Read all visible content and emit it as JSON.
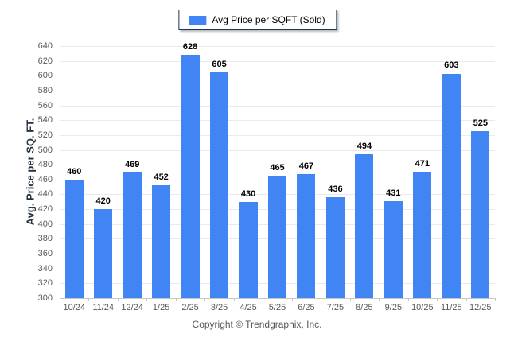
{
  "legend": {
    "label": "Avg Price per SQFT (Sold)"
  },
  "y_axis": {
    "title": "Avg. Price per SQ. FT."
  },
  "footer": {
    "copyright": "Copyright © Trendgraphix, Inc."
  },
  "colors": {
    "bar": "#4184F3",
    "grid": "#EAEAEA",
    "baseline": "#C6C6C6",
    "axis_text": "#595959",
    "value_label": "#000000",
    "legend_border": "#17375D"
  },
  "chart_data": {
    "type": "bar",
    "title": "",
    "legend_entries": [
      "Avg Price per SQFT (Sold)"
    ],
    "legend_position": "top-center",
    "categories": [
      "10/24",
      "11/24",
      "12/24",
      "1/25",
      "2/25",
      "3/25",
      "4/25",
      "5/25",
      "6/25",
      "7/25",
      "8/25",
      "9/25",
      "10/25",
      "11/25",
      "12/25"
    ],
    "values": [
      460,
      420,
      469,
      452,
      628,
      605,
      430,
      465,
      467,
      436,
      494,
      431,
      471,
      603,
      525
    ],
    "xlabel": "",
    "ylabel": "Avg. Price per SQ. FT.",
    "ylim": [
      300,
      640
    ],
    "ytick_step": 20,
    "grid": true
  }
}
